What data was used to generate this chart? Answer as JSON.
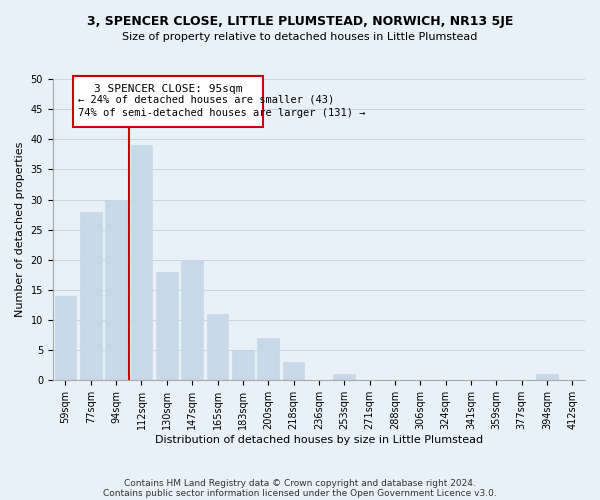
{
  "title": "3, SPENCER CLOSE, LITTLE PLUMSTEAD, NORWICH, NR13 5JE",
  "subtitle": "Size of property relative to detached houses in Little Plumstead",
  "xlabel": "Distribution of detached houses by size in Little Plumstead",
  "ylabel": "Number of detached properties",
  "bar_labels": [
    "59sqm",
    "77sqm",
    "94sqm",
    "112sqm",
    "130sqm",
    "147sqm",
    "165sqm",
    "183sqm",
    "200sqm",
    "218sqm",
    "236sqm",
    "253sqm",
    "271sqm",
    "288sqm",
    "306sqm",
    "324sqm",
    "341sqm",
    "359sqm",
    "377sqm",
    "394sqm",
    "412sqm"
  ],
  "bar_values": [
    14,
    28,
    30,
    39,
    18,
    20,
    11,
    5,
    7,
    3,
    0,
    1,
    0,
    0,
    0,
    0,
    0,
    0,
    0,
    1,
    0
  ],
  "bar_color": "#c8d8e8",
  "bar_edge_color": "#c8d8e8",
  "subject_line_color": "#cc0000",
  "subject_label": "3 SPENCER CLOSE: 95sqm",
  "annotation_line1": "← 24% of detached houses are smaller (43)",
  "annotation_line2": "74% of semi-detached houses are larger (131) →",
  "annotation_box_color": "#ffffff",
  "annotation_box_edge": "#cc0000",
  "ylim": [
    0,
    50
  ],
  "yticks": [
    0,
    5,
    10,
    15,
    20,
    25,
    30,
    35,
    40,
    45,
    50
  ],
  "grid_color": "#c8d4e0",
  "background_color": "#e8f0f8",
  "footer_line1": "Contains HM Land Registry data © Crown copyright and database right 2024.",
  "footer_line2": "Contains public sector information licensed under the Open Government Licence v3.0."
}
